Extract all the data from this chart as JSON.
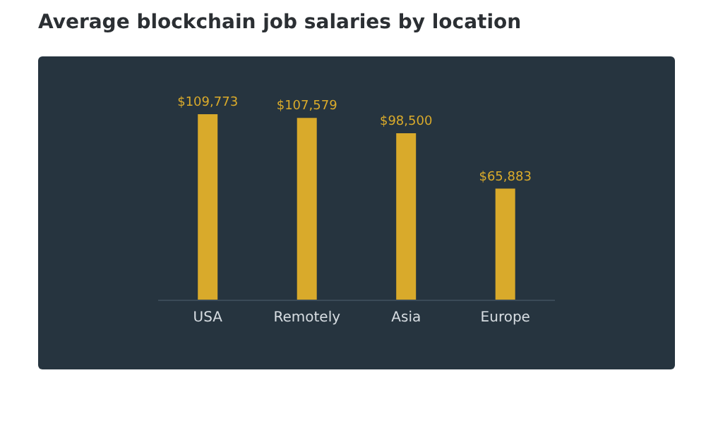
{
  "chart_data": {
    "type": "bar",
    "title": "Average blockchain job salaries by location",
    "categories": [
      "USA",
      "Remotely",
      "Asia",
      "Europe"
    ],
    "values": [
      109773,
      107579,
      98500,
      65883
    ],
    "value_labels": [
      "$109,773",
      "$107,579",
      "$98,500",
      "$65,883"
    ],
    "color": "#d9aa2b"
  }
}
